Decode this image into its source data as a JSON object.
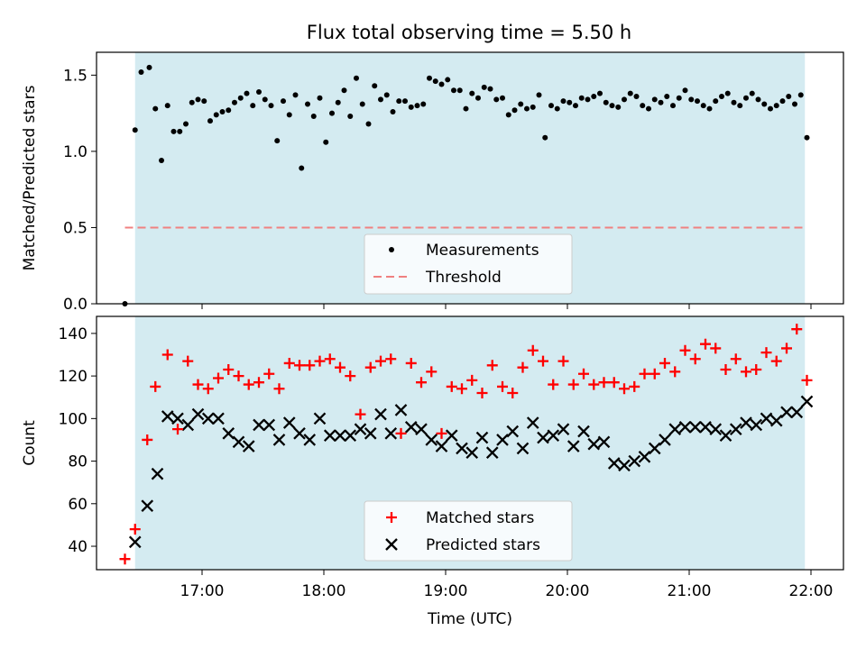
{
  "title": "Flux total observing time = 5.50 h",
  "chart_data": [
    {
      "type": "scatter",
      "panel": "top",
      "ylabel": "Matched/Predicted stars",
      "ylim": [
        0,
        1.65
      ],
      "yticks": [
        0.0,
        0.5,
        1.0,
        1.5
      ],
      "ytick_labels": [
        "0.0",
        "0.5",
        "1.0",
        "1.5"
      ],
      "threshold": {
        "name": "Threshold",
        "value": 0.5,
        "x_start": "16:22",
        "x_end": "21:58",
        "color": "#f08080"
      },
      "shaded_interval": {
        "start": "16:27",
        "end": "21:57",
        "color": "#d4ebf1"
      },
      "legend_position": "lower-center",
      "series": [
        {
          "name": "Measurements",
          "color": "#000000",
          "marker": "dot",
          "x": [
            "16:22",
            "16:27",
            "16:30",
            "16:34",
            "16:37",
            "16:40",
            "16:43",
            "16:46",
            "16:49",
            "16:52",
            "16:55",
            "16:58",
            "17:01",
            "17:04",
            "17:07",
            "17:10",
            "17:13",
            "17:16",
            "17:19",
            "17:22",
            "17:25",
            "17:28",
            "17:31",
            "17:34",
            "17:37",
            "17:40",
            "17:43",
            "17:46",
            "17:49",
            "17:52",
            "17:55",
            "17:58",
            "18:01",
            "18:04",
            "18:07",
            "18:10",
            "18:13",
            "18:16",
            "18:19",
            "18:22",
            "18:25",
            "18:28",
            "18:31",
            "18:34",
            "18:37",
            "18:40",
            "18:43",
            "18:46",
            "18:49",
            "18:52",
            "18:55",
            "18:58",
            "19:01",
            "19:04",
            "19:07",
            "19:10",
            "19:13",
            "19:16",
            "19:19",
            "19:22",
            "19:25",
            "19:28",
            "19:31",
            "19:34",
            "19:37",
            "19:40",
            "19:43",
            "19:46",
            "19:49",
            "19:52",
            "19:55",
            "19:58",
            "20:01",
            "20:04",
            "20:07",
            "20:10",
            "20:13",
            "20:16",
            "20:19",
            "20:22",
            "20:25",
            "20:28",
            "20:31",
            "20:34",
            "20:37",
            "20:40",
            "20:43",
            "20:46",
            "20:49",
            "20:52",
            "20:55",
            "20:58",
            "21:01",
            "21:04",
            "21:07",
            "21:10",
            "21:13",
            "21:16",
            "21:19",
            "21:22",
            "21:25",
            "21:28",
            "21:31",
            "21:34",
            "21:37",
            "21:40",
            "21:43",
            "21:46",
            "21:49",
            "21:52",
            "21:55",
            "21:58"
          ],
          "y": [
            0.0,
            1.14,
            1.52,
            1.55,
            1.28,
            0.94,
            1.3,
            1.13,
            1.13,
            1.18,
            1.32,
            1.34,
            1.33,
            1.2,
            1.24,
            1.26,
            1.27,
            1.32,
            1.35,
            1.38,
            1.3,
            1.39,
            1.34,
            1.3,
            1.07,
            1.33,
            1.24,
            1.37,
            0.89,
            1.31,
            1.23,
            1.35,
            1.06,
            1.25,
            1.32,
            1.4,
            1.23,
            1.48,
            1.31,
            1.18,
            1.43,
            1.34,
            1.37,
            1.26,
            1.33,
            1.33,
            1.29,
            1.3,
            1.31,
            1.48,
            1.46,
            1.44,
            1.47,
            1.4,
            1.4,
            1.28,
            1.38,
            1.35,
            1.42,
            1.41,
            1.34,
            1.35,
            1.24,
            1.27,
            1.31,
            1.28,
            1.29,
            1.37,
            1.09,
            1.3,
            1.28,
            1.33,
            1.32,
            1.3,
            1.35,
            1.34,
            1.36,
            1.38,
            1.32,
            1.3,
            1.29,
            1.34,
            1.38,
            1.36,
            1.3,
            1.28,
            1.34,
            1.32,
            1.36,
            1.3,
            1.35,
            1.4,
            1.34,
            1.33,
            1.3,
            1.28,
            1.33,
            1.36,
            1.38,
            1.32,
            1.3,
            1.35,
            1.38,
            1.34,
            1.31,
            1.28,
            1.3,
            1.33,
            1.36,
            1.31,
            1.37,
            1.09
          ]
        }
      ]
    },
    {
      "type": "scatter",
      "panel": "bottom",
      "xlabel": "Time (UTC)",
      "ylabel": "Count",
      "xlim": [
        "16:08",
        "22:16"
      ],
      "xticks": [
        "17:00",
        "18:00",
        "19:00",
        "20:00",
        "21:00",
        "22:00"
      ],
      "ylim": [
        29,
        148
      ],
      "yticks": [
        40,
        60,
        80,
        100,
        120,
        140
      ],
      "shaded_interval": {
        "start": "16:27",
        "end": "21:57",
        "color": "#d4ebf1"
      },
      "legend_position": "lower-center",
      "series": [
        {
          "name": "Matched stars",
          "color": "#ff0000",
          "marker": "plus",
          "x": [
            "16:22",
            "16:27",
            "16:33",
            "16:37",
            "16:43",
            "16:48",
            "16:53",
            "16:58",
            "17:03",
            "17:08",
            "17:13",
            "17:18",
            "17:23",
            "17:28",
            "17:33",
            "17:38",
            "17:43",
            "17:48",
            "17:53",
            "17:58",
            "18:03",
            "18:08",
            "18:13",
            "18:18",
            "18:23",
            "18:28",
            "18:33",
            "18:38",
            "18:43",
            "18:48",
            "18:53",
            "18:58",
            "19:03",
            "19:08",
            "19:13",
            "19:18",
            "19:23",
            "19:28",
            "19:33",
            "19:38",
            "19:43",
            "19:48",
            "19:53",
            "19:58",
            "20:03",
            "20:08",
            "20:13",
            "20:18",
            "20:23",
            "20:28",
            "20:33",
            "20:38",
            "20:43",
            "20:48",
            "20:53",
            "20:58",
            "21:03",
            "21:08",
            "21:13",
            "21:18",
            "21:23",
            "21:28",
            "21:33",
            "21:38",
            "21:43",
            "21:48",
            "21:53",
            "21:58"
          ],
          "y": [
            34,
            48,
            90,
            115,
            130,
            95,
            127,
            116,
            114,
            119,
            123,
            120,
            116,
            117,
            121,
            114,
            126,
            125,
            125,
            127,
            128,
            124,
            120,
            102,
            124,
            127,
            128,
            93,
            126,
            117,
            122,
            93,
            115,
            114,
            118,
            112,
            125,
            115,
            112,
            124,
            132,
            127,
            116,
            127,
            116,
            121,
            116,
            117,
            117,
            114,
            115,
            121,
            121,
            126,
            122,
            132,
            128,
            135,
            133,
            123,
            128,
            122,
            123,
            131,
            127,
            133,
            142,
            118
          ]
        },
        {
          "name": "Predicted stars",
          "color": "#000000",
          "marker": "x",
          "x": [
            "16:27",
            "16:33",
            "16:38",
            "16:43",
            "16:48",
            "16:53",
            "16:58",
            "17:03",
            "17:08",
            "17:13",
            "17:18",
            "17:23",
            "17:28",
            "17:33",
            "17:38",
            "17:43",
            "17:48",
            "17:53",
            "17:58",
            "18:03",
            "18:08",
            "18:13",
            "18:18",
            "18:23",
            "18:28",
            "18:33",
            "18:38",
            "18:43",
            "18:48",
            "18:53",
            "18:58",
            "19:03",
            "19:08",
            "19:13",
            "19:18",
            "19:23",
            "19:28",
            "19:33",
            "19:38",
            "19:43",
            "19:48",
            "19:53",
            "19:58",
            "20:03",
            "20:08",
            "20:13",
            "20:18",
            "20:23",
            "20:28",
            "20:33",
            "20:38",
            "20:43",
            "20:48",
            "20:53",
            "20:58",
            "21:03",
            "21:08",
            "21:13",
            "21:18",
            "21:23",
            "21:28",
            "21:33",
            "21:38",
            "21:43",
            "21:48",
            "21:53",
            "21:58"
          ],
          "y": [
            42,
            59,
            74,
            101,
            100,
            97,
            102,
            100,
            100,
            93,
            89,
            87,
            97,
            97,
            90,
            98,
            93,
            90,
            100,
            92,
            92,
            92,
            95,
            93,
            102,
            93,
            104,
            96,
            95,
            90,
            87,
            92,
            86,
            84,
            91,
            84,
            90,
            94,
            86,
            98,
            91,
            92,
            95,
            87,
            94,
            88,
            89,
            79,
            78,
            80,
            82,
            86,
            90,
            95,
            96,
            96,
            96,
            95,
            92,
            95,
            98,
            97,
            100,
            99,
            103,
            103,
            108
          ]
        }
      ]
    }
  ]
}
